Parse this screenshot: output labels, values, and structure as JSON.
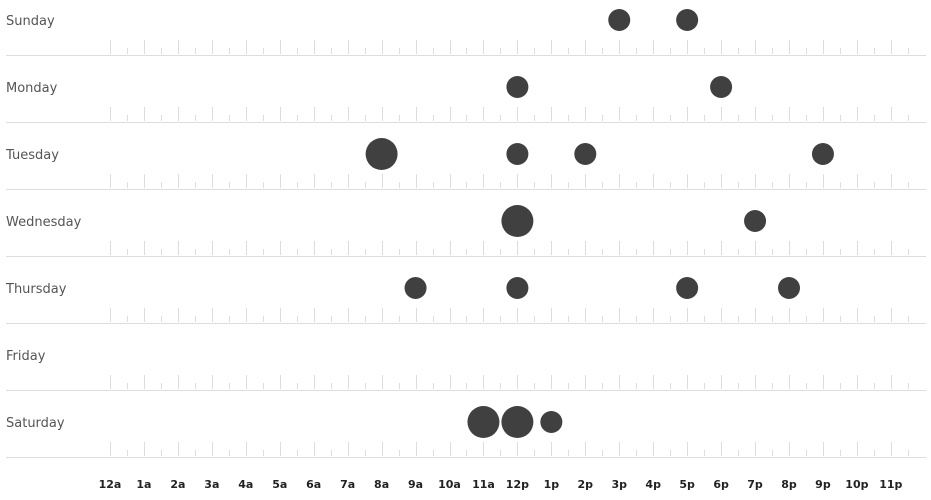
{
  "chart_data": {
    "type": "scatter",
    "days": [
      "Sunday",
      "Monday",
      "Tuesday",
      "Wednesday",
      "Thursday",
      "Friday",
      "Saturday"
    ],
    "hours": [
      "12a",
      "1a",
      "2a",
      "3a",
      "4a",
      "5a",
      "6a",
      "7a",
      "8a",
      "9a",
      "10a",
      "11a",
      "12p",
      "1p",
      "2p",
      "3p",
      "4p",
      "5p",
      "6p",
      "7p",
      "8p",
      "9p",
      "10p",
      "11p"
    ],
    "dot_color": "#404040",
    "grid_color": "#dddddd",
    "points": [
      {
        "day": "Sunday",
        "hour": 15,
        "count": 1
      },
      {
        "day": "Sunday",
        "hour": 17,
        "count": 1
      },
      {
        "day": "Monday",
        "hour": 12,
        "count": 1
      },
      {
        "day": "Monday",
        "hour": 18,
        "count": 1
      },
      {
        "day": "Tuesday",
        "hour": 8,
        "count": 2
      },
      {
        "day": "Tuesday",
        "hour": 12,
        "count": 1
      },
      {
        "day": "Tuesday",
        "hour": 14,
        "count": 1
      },
      {
        "day": "Tuesday",
        "hour": 21,
        "count": 1
      },
      {
        "day": "Wednesday",
        "hour": 12,
        "count": 2
      },
      {
        "day": "Wednesday",
        "hour": 19,
        "count": 1
      },
      {
        "day": "Thursday",
        "hour": 9,
        "count": 1
      },
      {
        "day": "Thursday",
        "hour": 12,
        "count": 1
      },
      {
        "day": "Thursday",
        "hour": 17,
        "count": 1
      },
      {
        "day": "Thursday",
        "hour": 20,
        "count": 1
      },
      {
        "day": "Saturday",
        "hour": 11,
        "count": 2
      },
      {
        "day": "Saturday",
        "hour": 12,
        "count": 2
      },
      {
        "day": "Saturday",
        "hour": 13,
        "count": 1
      }
    ]
  }
}
